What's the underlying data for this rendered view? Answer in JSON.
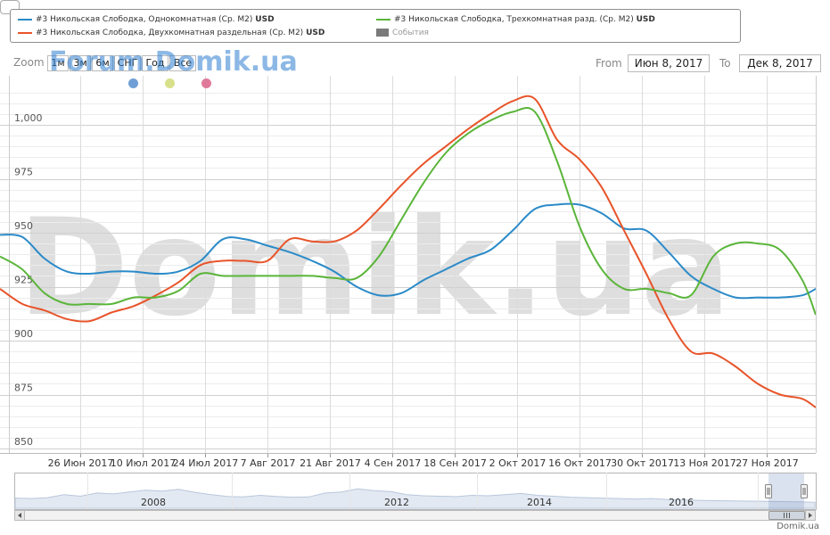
{
  "legend": {
    "items": [
      {
        "label": "#3 Никольская Слободка, Однокомнатная (Ср. М2)",
        "unit": "USD",
        "color": "#2a8ac8"
      },
      {
        "label": "#3 Никольская Слободка, Двухкомнатная раздельная (Ср. М2)",
        "unit": "USD",
        "color": "#e8542a"
      },
      {
        "label": "#3 Никольская Слободка, Трехкомнатная разд. (Ср. М2)",
        "unit": "USD",
        "color": "#5bb53a"
      },
      {
        "label": "События",
        "unit": "",
        "color": "#7a7a7a"
      }
    ]
  },
  "toolbar": {
    "zoom_label": "Zoom",
    "buttons": [
      "1м",
      "3м",
      "6м",
      "СНГ",
      "Год",
      "Все"
    ],
    "from_label": "From",
    "from_value": "Июн 8, 2017",
    "to_label": "To",
    "to_value": "Дек 8, 2017"
  },
  "watermark": {
    "top": "Forum.Domik.ua",
    "big": "Domik.ua"
  },
  "dots": [
    {
      "color": "#6f9fd6"
    },
    {
      "color": "#d9e08a"
    },
    {
      "color": "#e07a9a"
    }
  ],
  "credit": "Domik.ua",
  "navigator": {
    "year_labels": [
      "2008",
      "2012",
      "2014",
      "2016"
    ]
  },
  "chart_data": {
    "type": "line",
    "ylim": [
      850,
      1015
    ],
    "yticks": [
      850,
      875,
      900,
      925,
      950,
      975,
      1000
    ],
    "ytick_labels": [
      "850",
      "875",
      "900",
      "925",
      "950",
      "975",
      "1,000"
    ],
    "xticks": [
      "26 Июн 2017",
      "10 Июл 2017",
      "24 Июл 2017",
      "7 Авг 2017",
      "21 Авг 2017",
      "4 Сен 2017",
      "18 Сен 2017",
      "2 Окт 2017",
      "16 Окт 2017",
      "30 Окт 2017",
      "13 Ноя 2017",
      "27 Ноя 2017"
    ],
    "x": [
      "2017-06-08",
      "2017-06-13",
      "2017-06-18",
      "2017-06-23",
      "2017-06-28",
      "2017-07-03",
      "2017-07-08",
      "2017-07-13",
      "2017-07-18",
      "2017-07-23",
      "2017-07-28",
      "2017-08-02",
      "2017-08-07",
      "2017-08-12",
      "2017-08-17",
      "2017-08-22",
      "2017-08-27",
      "2017-09-01",
      "2017-09-06",
      "2017-09-11",
      "2017-09-16",
      "2017-09-21",
      "2017-09-26",
      "2017-10-01",
      "2017-10-06",
      "2017-10-11",
      "2017-10-16",
      "2017-10-21",
      "2017-10-26",
      "2017-10-31",
      "2017-11-05",
      "2017-11-10",
      "2017-11-15",
      "2017-11-20",
      "2017-11-25",
      "2017-11-30",
      "2017-12-05",
      "2017-12-08"
    ],
    "series": [
      {
        "name": "#3 Никольская Слободка, Однокомнатная (Ср. М2) USD",
        "color": "#2a8ac8",
        "values": [
          949,
          948,
          938,
          932,
          931,
          932,
          932,
          931,
          932,
          937,
          947,
          947,
          944,
          941,
          937,
          932,
          925,
          921,
          922,
          928,
          933,
          938,
          942,
          951,
          961,
          963,
          963,
          959,
          952,
          951,
          941,
          930,
          924,
          920,
          920,
          920,
          921,
          924
        ]
      },
      {
        "name": "#3 Никольская Слободка, Двухкомнатная раздельная (Ср. М2) USD",
        "color": "#e8542a",
        "values": [
          924,
          917,
          914,
          910,
          909,
          913,
          916,
          921,
          927,
          935,
          937,
          937,
          937,
          947,
          946,
          946,
          951,
          961,
          972,
          982,
          990,
          998,
          1005,
          1011,
          1012,
          993,
          984,
          971,
          951,
          931,
          910,
          895,
          894,
          888,
          880,
          875,
          873,
          869
        ]
      },
      {
        "name": "#3 Никольская Слободка, Трехкомнатная разд. (Ср. М2) USD",
        "color": "#5bb53a",
        "values": [
          939,
          933,
          922,
          917,
          917,
          917,
          920,
          920,
          923,
          931,
          930,
          930,
          930,
          930,
          930,
          929,
          929,
          939,
          956,
          973,
          987,
          996,
          1002,
          1006,
          1006,
          983,
          953,
          933,
          924,
          924,
          922,
          921,
          939,
          945,
          945,
          942,
          928,
          912
        ]
      }
    ]
  }
}
